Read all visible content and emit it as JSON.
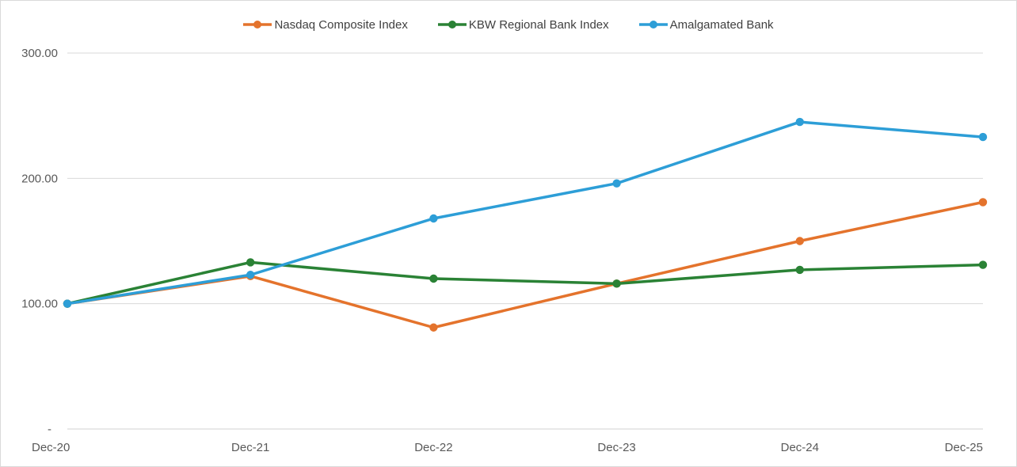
{
  "chart_data": {
    "type": "line",
    "title": "",
    "xlabel": "",
    "ylabel": "",
    "categories": [
      "Dec-20",
      "Dec-21",
      "Dec-22",
      "Dec-23",
      "Dec-24",
      "Dec-25"
    ],
    "series": [
      {
        "name": "Nasdaq Composite Index",
        "color": "#E4732C",
        "values": [
          100,
          122,
          81,
          116,
          150,
          181
        ]
      },
      {
        "name": "KBW Regional Bank Index",
        "color": "#2A8235",
        "values": [
          100,
          133,
          120,
          116,
          127,
          131
        ]
      },
      {
        "name": "Amalgamated Bank",
        "color": "#2D9ED7",
        "values": [
          100,
          123,
          168,
          196,
          245,
          233
        ]
      }
    ],
    "ylim": [
      0,
      300
    ],
    "yticks": [
      {
        "value": 300,
        "label": "300.00"
      },
      {
        "value": 200,
        "label": "200.00"
      },
      {
        "value": 100,
        "label": "100.00"
      },
      {
        "value": 0,
        "label": "-"
      }
    ],
    "grid": true,
    "legend_position": "top",
    "marker": "circle"
  },
  "style": {
    "background": "#FFFFFF",
    "border_color": "#D9D9D9",
    "gridline_color": "#D9D9D9",
    "axis_line_color": "#D0D0D0",
    "tick_label_color": "#595959",
    "legend_label_color": "#404040"
  }
}
